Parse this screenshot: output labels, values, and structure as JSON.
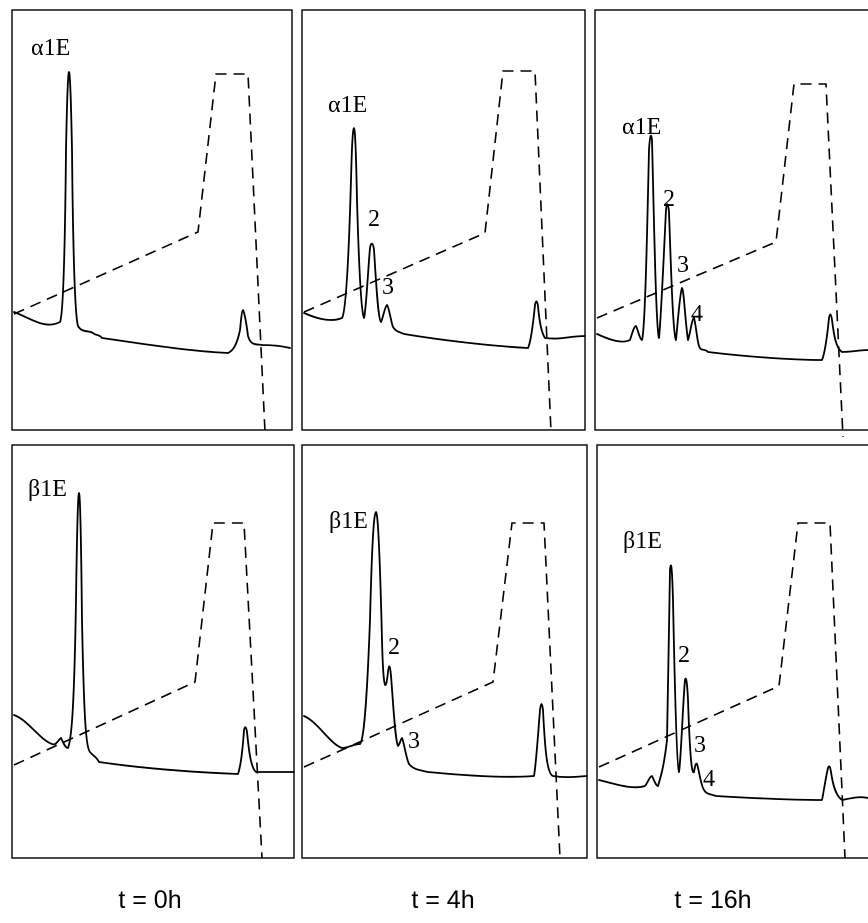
{
  "figure": {
    "time_labels": [
      "t = 0h",
      "t = 4h",
      "t = 16h"
    ]
  },
  "chart_data": [
    {
      "type": "line",
      "row": "top",
      "time": "t = 0h",
      "peaks": [
        {
          "label": "α1E",
          "height": 0.93
        }
      ]
    },
    {
      "type": "line",
      "row": "top",
      "time": "t = 4h",
      "peaks": [
        {
          "label": "α1E",
          "height": 0.85
        },
        {
          "label": "2",
          "height": 0.42
        },
        {
          "label": "3",
          "height": 0.17
        }
      ]
    },
    {
      "type": "line",
      "row": "top",
      "time": "t = 16h",
      "peaks": [
        {
          "label": "α1E",
          "height": 0.8
        },
        {
          "label": "2",
          "height": 0.57
        },
        {
          "label": "3",
          "height": 0.32
        },
        {
          "label": "4",
          "height": 0.12
        }
      ]
    },
    {
      "type": "line",
      "row": "bottom",
      "time": "t = 0h",
      "peaks": [
        {
          "label": "β1E",
          "height": 0.93
        }
      ]
    },
    {
      "type": "line",
      "row": "bottom",
      "time": "t = 4h",
      "peaks": [
        {
          "label": "β1E",
          "height": 0.9
        },
        {
          "label": "2",
          "height": 0.37
        },
        {
          "label": "3",
          "height": 0.1
        }
      ]
    },
    {
      "type": "line",
      "row": "bottom",
      "time": "t = 16h",
      "peaks": [
        {
          "label": "β1E",
          "height": 0.85
        },
        {
          "label": "2",
          "height": 0.58
        },
        {
          "label": "3",
          "height": 0.19
        },
        {
          "label": "4",
          "height": 0.08
        }
      ]
    }
  ]
}
